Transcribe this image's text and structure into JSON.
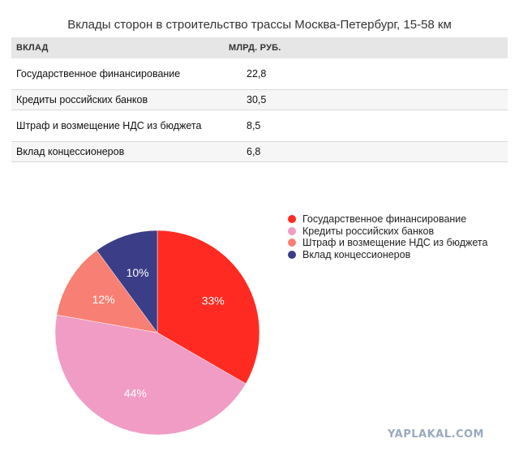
{
  "title": "Вклады сторон в строительство трассы Москва-Петербург, 15-58 км",
  "table": {
    "headers": {
      "name": "ВКЛАД",
      "value": "МЛРД. РУБ."
    },
    "rows": [
      {
        "name": "Государственное финансирование",
        "value": "22,8"
      },
      {
        "name": "Кредиты российских банков",
        "value": "30,5"
      },
      {
        "name": "Штраф и возмещение НДС из бюджета",
        "value": "8,5"
      },
      {
        "name": "Вклад концессионеров",
        "value": "6,8"
      }
    ]
  },
  "chart_data": {
    "type": "pie",
    "title": "",
    "slices": [
      {
        "label": "Государственное финансирование",
        "value": 33,
        "display": "33%",
        "color": "#ff2b22"
      },
      {
        "label": "Кредиты российских банков",
        "value": 44,
        "display": "44%",
        "color": "#f09cc4"
      },
      {
        "label": "Штраф и возмещение НДС из бюджета",
        "value": 12,
        "display": "12%",
        "color": "#f87f73"
      },
      {
        "label": "Вклад концессионеров",
        "value": 10,
        "display": "10%",
        "color": "#3c3d87"
      }
    ],
    "start_angle_deg": 0,
    "direction": "clockwise",
    "legend_position": "right"
  },
  "watermark": "YAPLAKAL.COM"
}
